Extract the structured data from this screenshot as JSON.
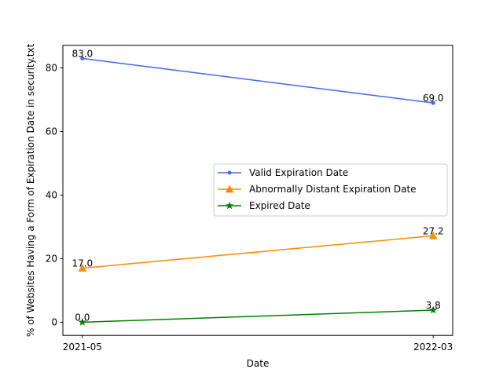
{
  "chart_data": {
    "type": "line",
    "title": "",
    "xlabel": "Date",
    "ylabel": "% of Websites Having a Form of Expiration Date in security.txt",
    "categories": [
      "2021-05",
      "2022-03"
    ],
    "ylim": [
      -4.15,
      87.15
    ],
    "yticks": [
      0,
      20,
      40,
      60,
      80
    ],
    "grid": false,
    "legend_position": "center-right",
    "series": [
      {
        "name": "Valid Expiration Date",
        "values": [
          83.0,
          69.0
        ],
        "labels": [
          "83.0",
          "69.0"
        ],
        "color": "#4169e1",
        "marker": "point"
      },
      {
        "name": "Abnormally Distant Expiration Date",
        "values": [
          17.0,
          27.2
        ],
        "labels": [
          "17.0",
          "27.2"
        ],
        "color": "#ff8c00",
        "marker": "triangle"
      },
      {
        "name": "Expired Date",
        "values": [
          0.0,
          3.8
        ],
        "labels": [
          "0.0",
          "3.8"
        ],
        "color": "#008000",
        "marker": "star"
      }
    ]
  }
}
